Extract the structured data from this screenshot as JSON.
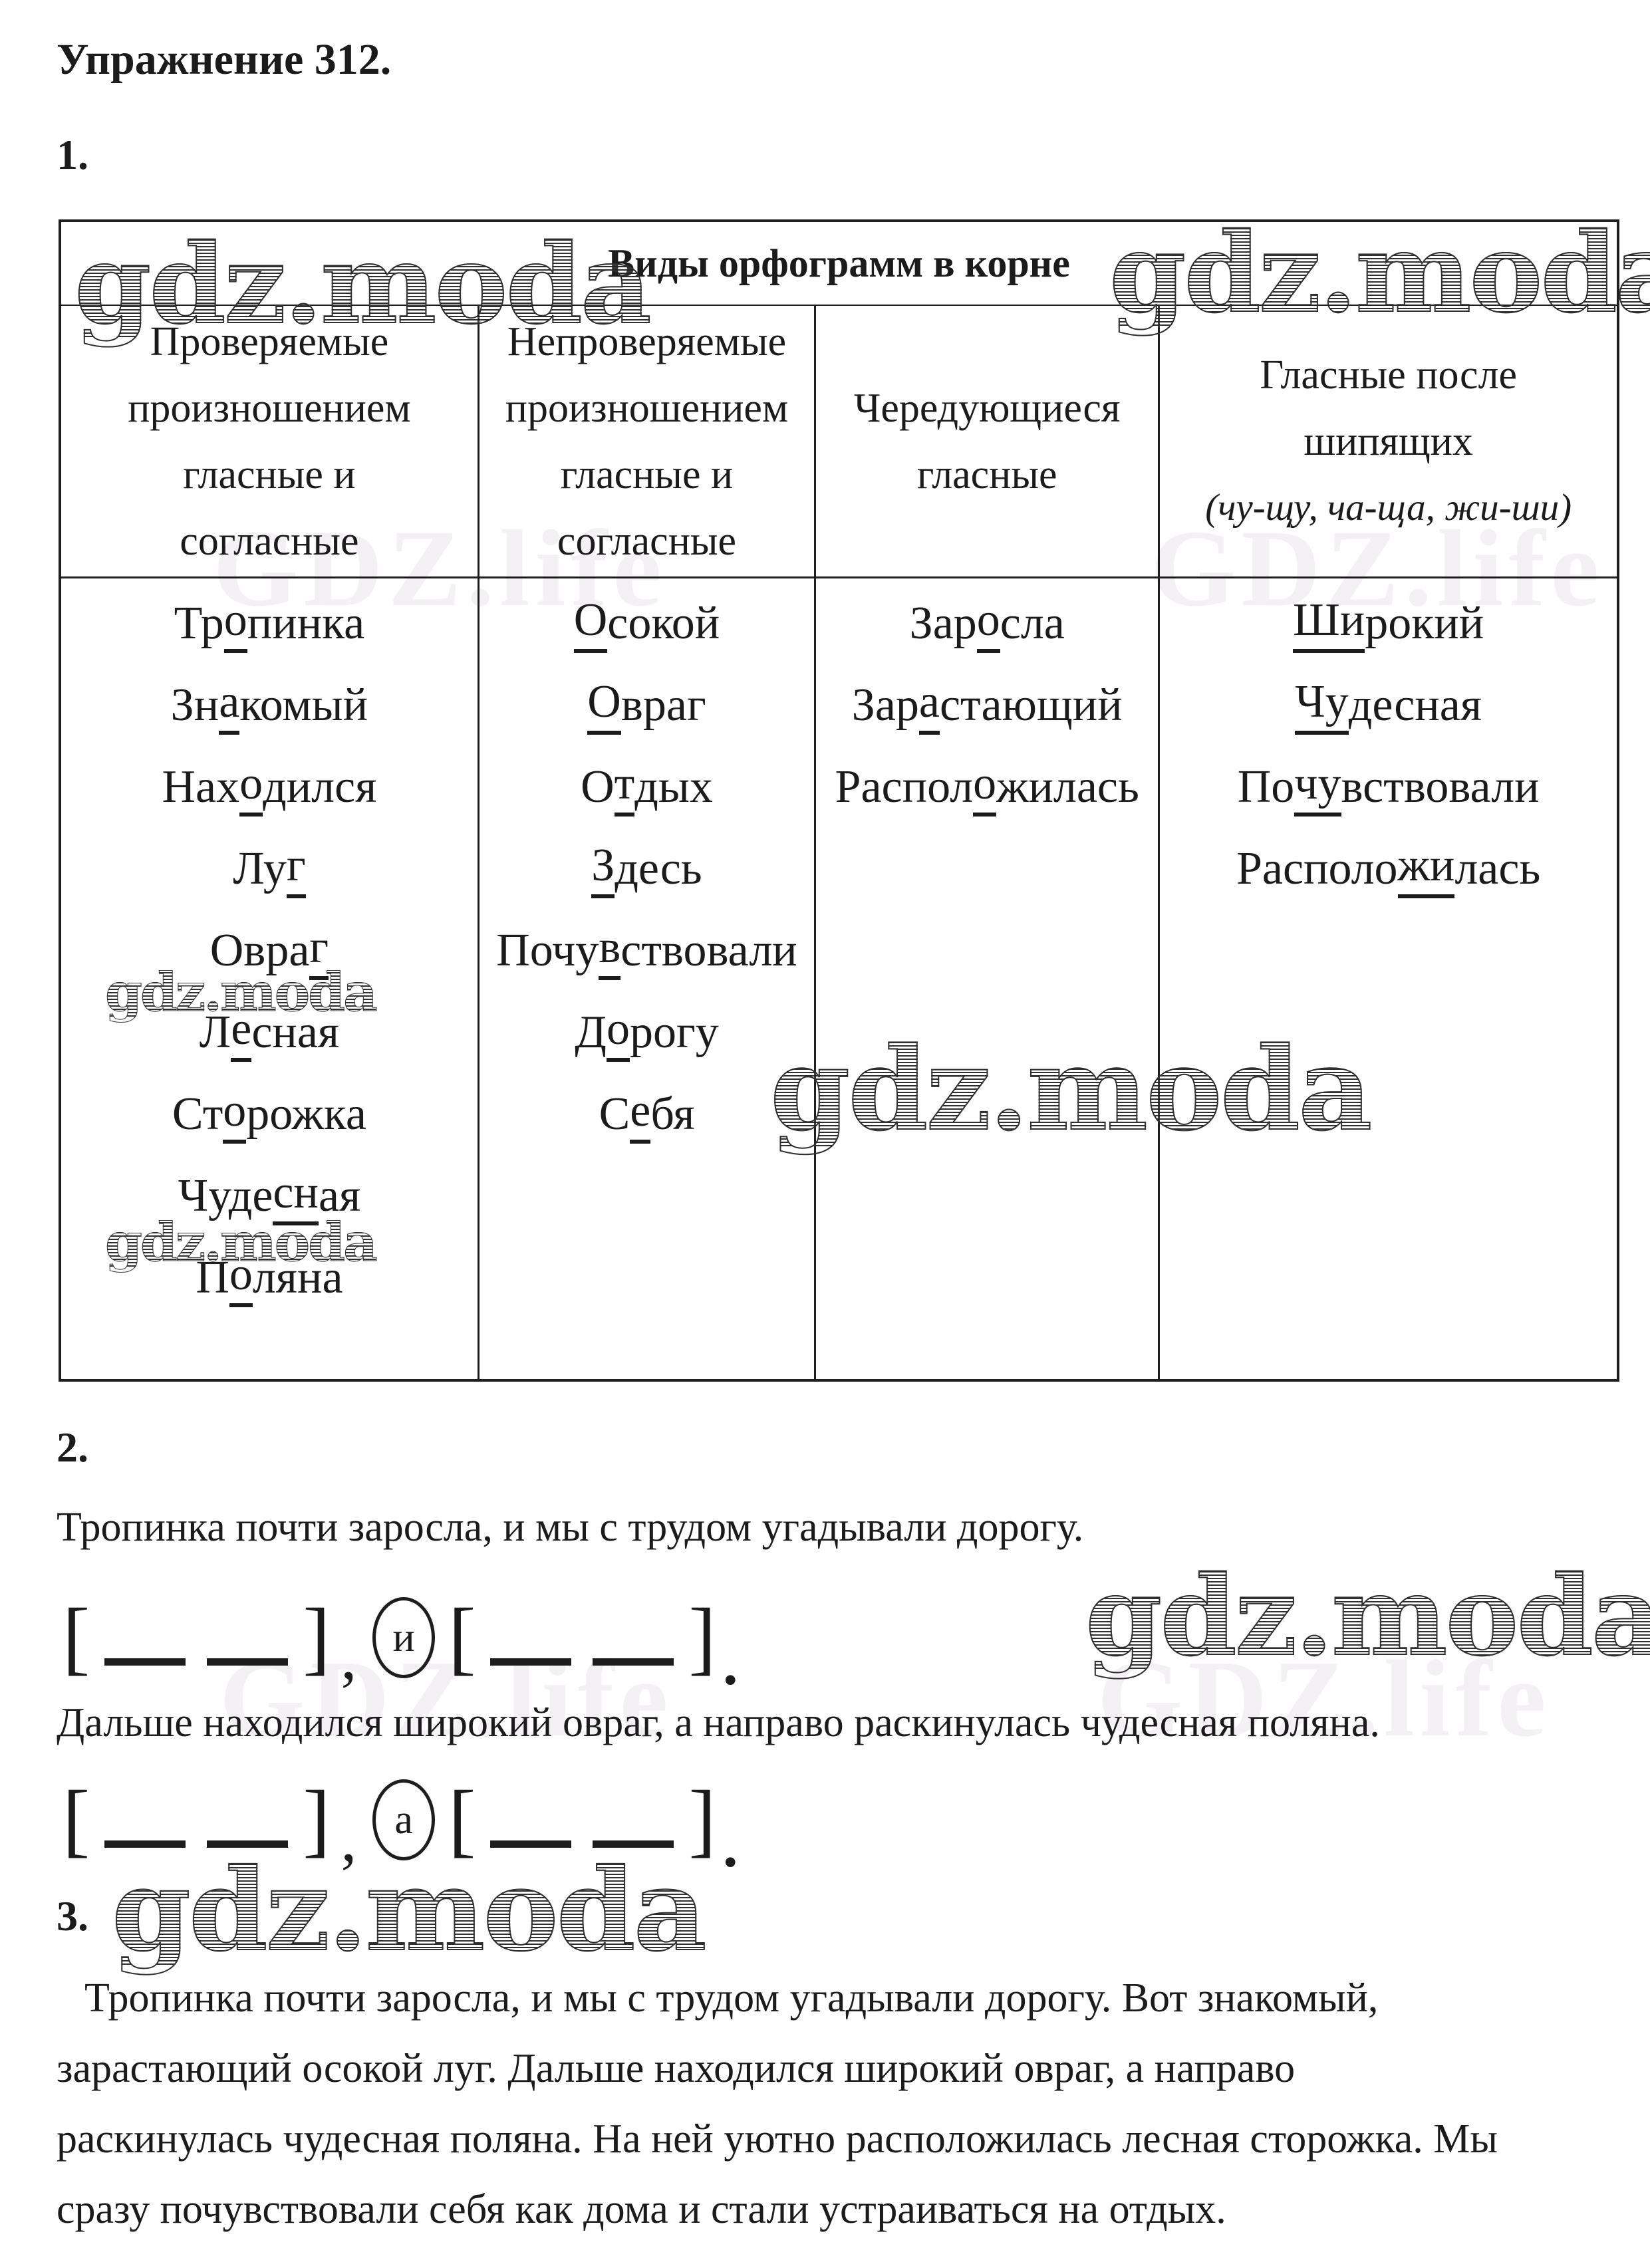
{
  "page": {
    "title": "Упражнение 312."
  },
  "sections": {
    "s1": "1.",
    "s2": "2.",
    "s3": "3."
  },
  "watermark": {
    "text": "gdz.moda",
    "ghost": "GDZ.life"
  },
  "table": {
    "title": "Виды орфограмм в корне",
    "headers": [
      {
        "lines": [
          "Проверяемые",
          "произношением",
          "гласные и",
          "согласные"
        ],
        "italic_last": false
      },
      {
        "lines": [
          "Непроверяемые",
          "произношением",
          "гласные и",
          "согласные"
        ],
        "italic_last": false
      },
      {
        "lines": [
          "Чередующиеся",
          "гласные"
        ],
        "italic_last": false
      },
      {
        "lines": [
          "Гласные после",
          "шипящих",
          "(чу-щу, ча-ща, жи-ши)"
        ],
        "italic_last": true
      }
    ],
    "columns": [
      {
        "words": [
          {
            "pre": "Тр",
            "u": "о",
            "post": "пинка"
          },
          {
            "pre": "Зн",
            "u": "а",
            "post": "комый"
          },
          {
            "pre": "Нах",
            "u": "о",
            "post": "дился"
          },
          {
            "pre": "Лу",
            "u": "г",
            "post": ""
          },
          {
            "pre": "Овра",
            "u": "г",
            "post": ""
          },
          {
            "pre": "Л",
            "u": "е",
            "post": "сная"
          },
          {
            "pre": "Ст",
            "u": "о",
            "post": "рожка"
          },
          {
            "pre": "Чуде",
            "u": "сн",
            "post": "ая"
          },
          {
            "pre": "П",
            "u": "о",
            "post": "ляна"
          }
        ]
      },
      {
        "words": [
          {
            "pre": "",
            "u": "О",
            "post": "сокой"
          },
          {
            "pre": "",
            "u": "О",
            "post": "враг"
          },
          {
            "pre": "О",
            "u": "т",
            "post": "дых"
          },
          {
            "pre": "",
            "u": "З",
            "post": "десь"
          },
          {
            "pre": "Почу",
            "u": "в",
            "post": "ствовали"
          },
          {
            "pre": "Д",
            "u": "о",
            "post": "рогу"
          },
          {
            "pre": "С",
            "u": "е",
            "post": "бя"
          }
        ]
      },
      {
        "words": [
          {
            "pre": "Зар",
            "u": "о",
            "post": "сла"
          },
          {
            "pre": "Зар",
            "u": "а",
            "post": "стающий"
          },
          {
            "pre": "Распол",
            "u": "о",
            "post": "жилась"
          }
        ]
      },
      {
        "words": [
          {
            "pre": "",
            "u": "Ши",
            "post": "рокий"
          },
          {
            "pre": "",
            "u": "Чу",
            "post": "десная"
          },
          {
            "pre": "По",
            "u": "чу",
            "post": "вствовали"
          },
          {
            "pre": "Располо",
            "u": "жи",
            "post": "лась"
          }
        ]
      }
    ]
  },
  "section2": {
    "sentence1": "Тропинка почти заросла, и мы с трудом угадывали дорогу.",
    "sentence2": "Дальше находился широкий овраг, а направо раскинулась чудесная поляна.",
    "schemes": [
      {
        "tokens": [
          [
            "br",
            "["
          ],
          [
            "bl"
          ],
          [
            "bl"
          ],
          [
            "br",
            "]"
          ],
          [
            "cm",
            ","
          ],
          [
            "cj",
            "и"
          ],
          [
            "br",
            "["
          ],
          [
            "bl"
          ],
          [
            "bl"
          ],
          [
            "br",
            "]"
          ],
          [
            "pd",
            "."
          ]
        ]
      },
      {
        "tokens": [
          [
            "br",
            "["
          ],
          [
            "bl"
          ],
          [
            "bl"
          ],
          [
            "br",
            "]"
          ],
          [
            "cm",
            ","
          ],
          [
            "cj",
            "а"
          ],
          [
            "br",
            "["
          ],
          [
            "bl"
          ],
          [
            "bl"
          ],
          [
            "br",
            "]"
          ],
          [
            "pd",
            "."
          ]
        ]
      }
    ]
  },
  "section3": {
    "lines": [
      "Тропинка почти заросла, и мы с трудом угадывали дорогу. Вот знакомый,",
      "зарастающий осокой луг. Дальше находился широкий овраг, а направо",
      "раскинулась чудесная поляна. На ней уютно расположилась лесная сторожка. Мы",
      "сразу почувствовали себя как дома и стали устраиваться на отдых."
    ]
  }
}
